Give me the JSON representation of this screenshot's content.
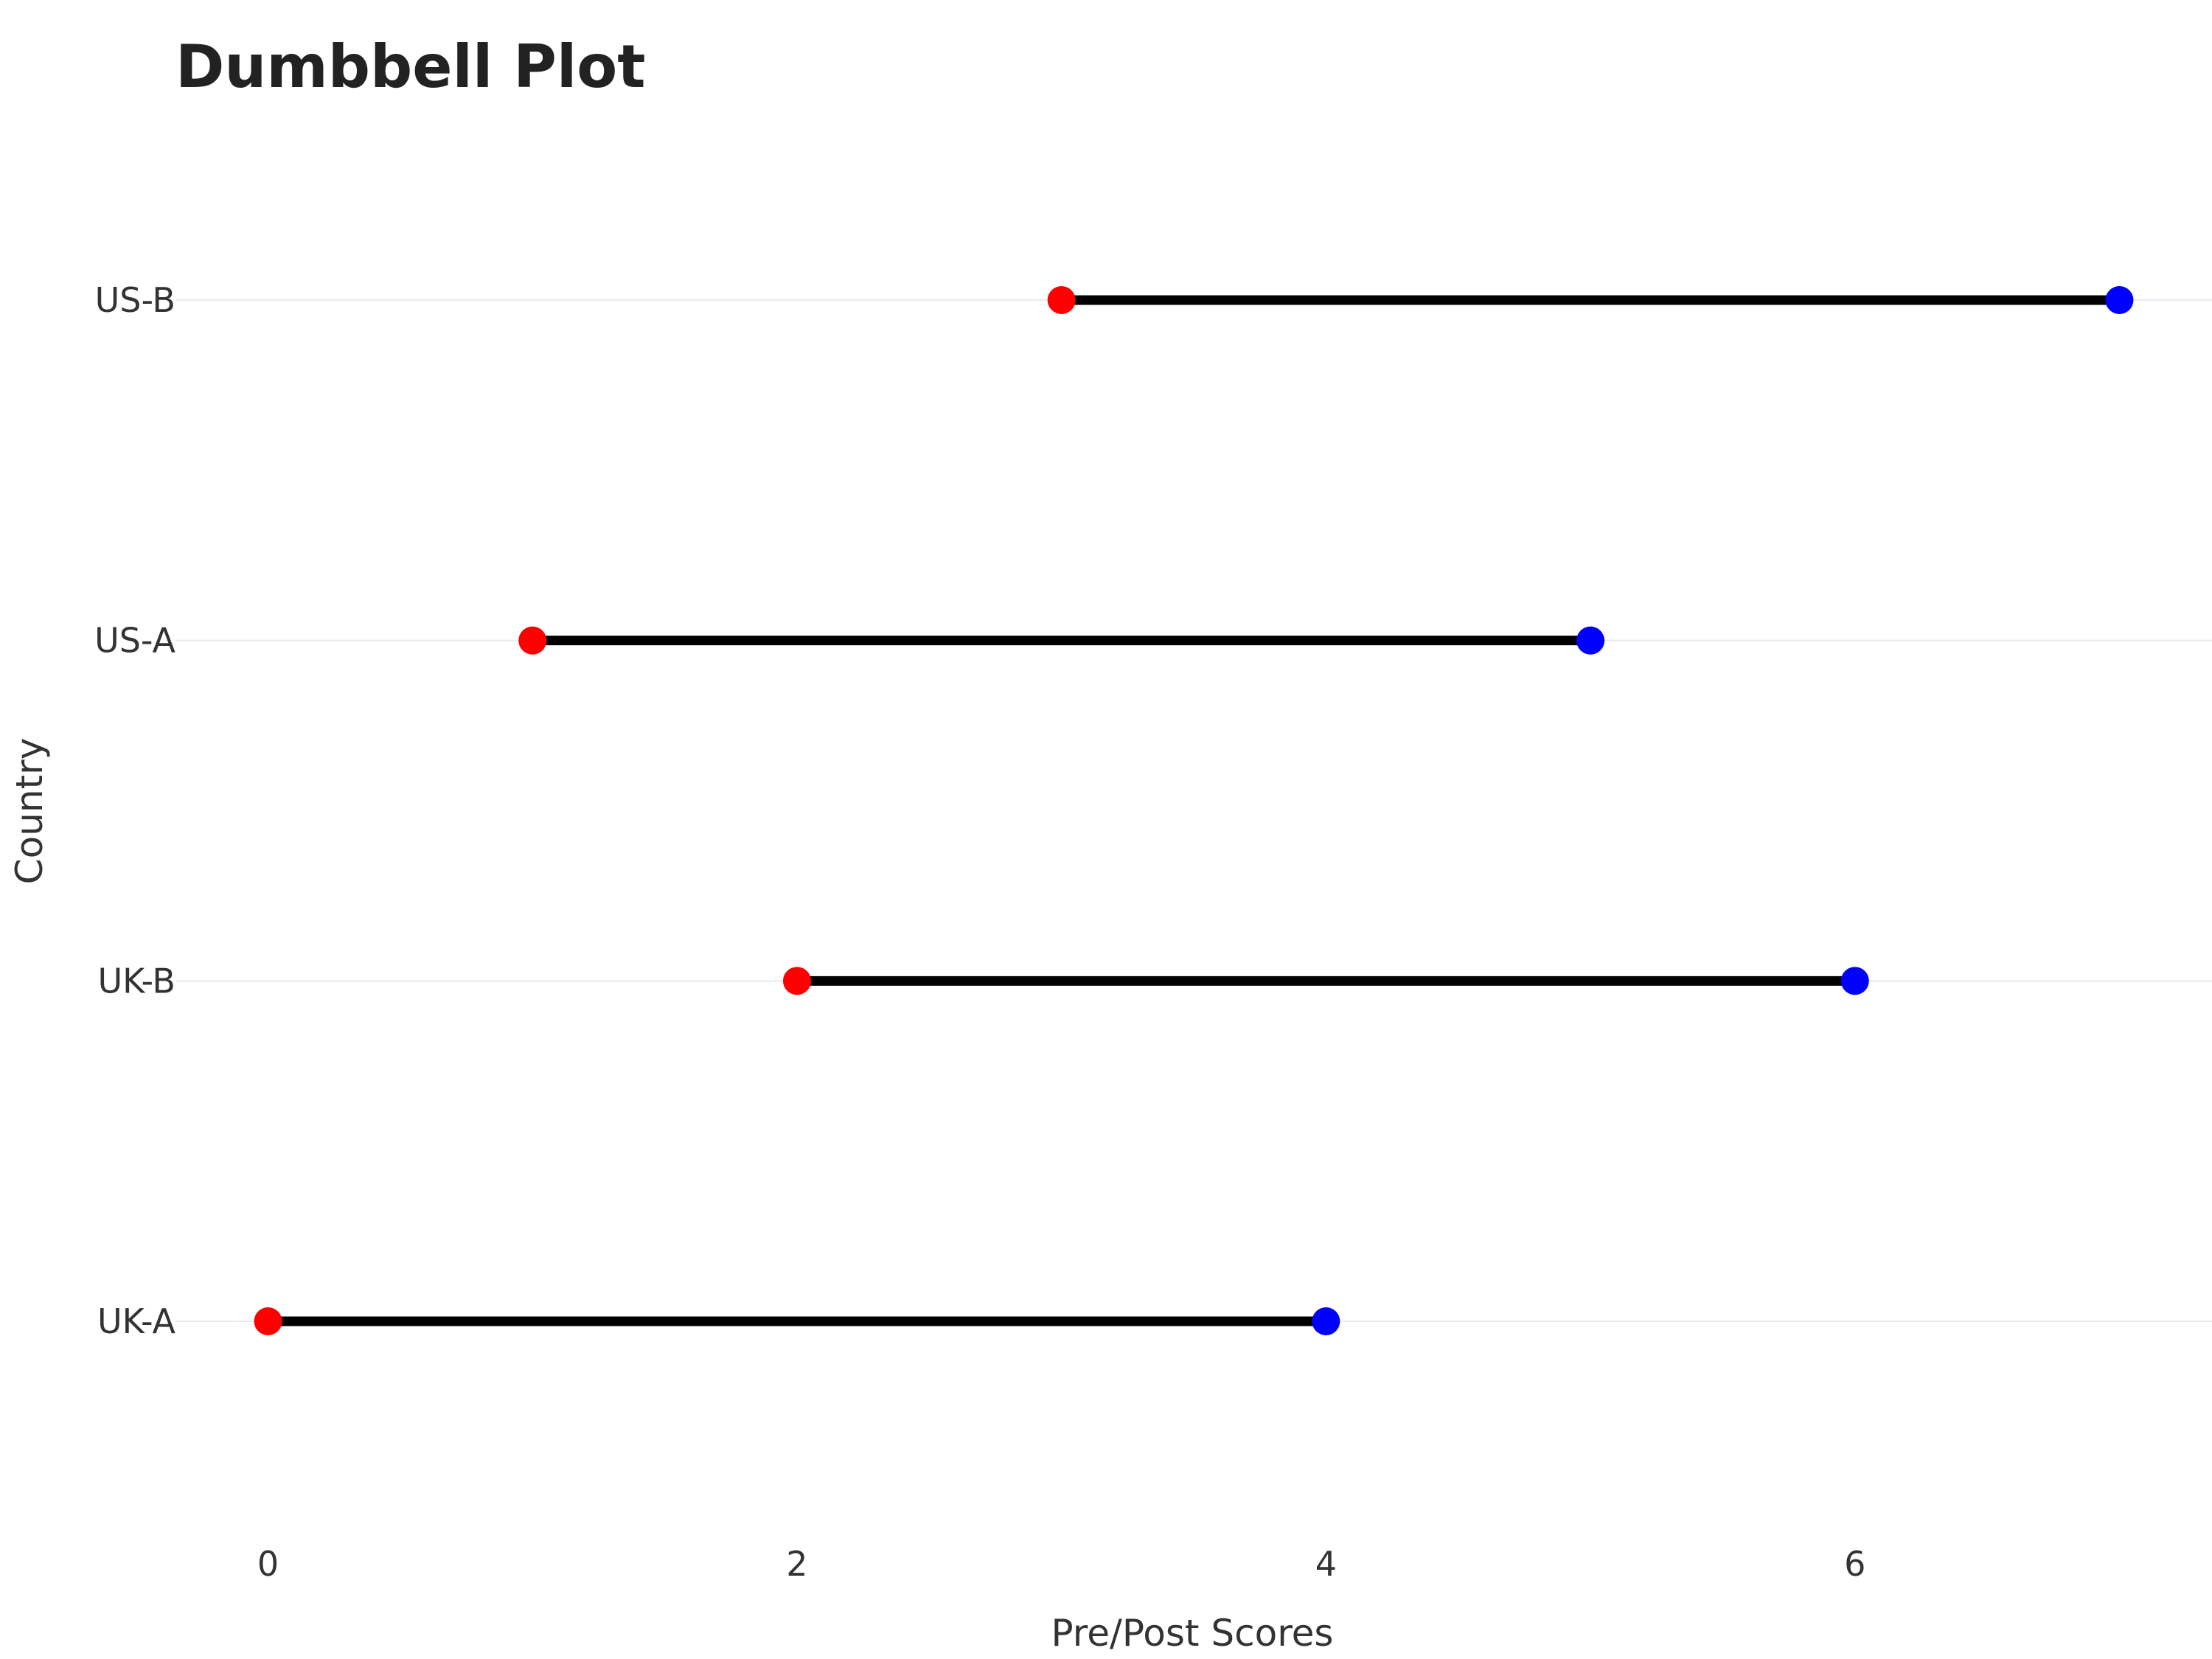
{
  "chart_data": {
    "type": "dumbbell",
    "title": "Dumbbell Plot",
    "xlabel": "Pre/Post Scores",
    "ylabel": "Country",
    "categories": [
      "UK-A",
      "UK-B",
      "US-A",
      "US-B"
    ],
    "series": [
      {
        "name": "",
        "color": "#ff0000",
        "values": [
          0,
          2,
          1,
          3
        ]
      },
      {
        "name": "",
        "color": "#0000ff",
        "values": [
          4,
          6,
          5,
          7
        ]
      }
    ],
    "x_ticks": [
      0,
      2,
      4,
      6
    ],
    "xlim": [
      -0.35,
      7.35
    ],
    "connector_color": "#000000",
    "grid": "horizontal-major",
    "legend": "none"
  }
}
